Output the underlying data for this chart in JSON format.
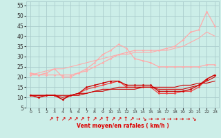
{
  "x": [
    0,
    1,
    2,
    3,
    4,
    5,
    6,
    7,
    8,
    9,
    10,
    11,
    12,
    13,
    14,
    15,
    16,
    17,
    18,
    19,
    20,
    21,
    22,
    23
  ],
  "background_color": "#cceee8",
  "grid_color": "#aacccc",
  "xlabel": "Vent moyen/en rafales ( km/h )",
  "xlabel_color": "#dd0000",
  "ylim": [
    5,
    57
  ],
  "yticks": [
    5,
    10,
    15,
    20,
    25,
    30,
    35,
    40,
    45,
    50,
    55
  ],
  "series": [
    {
      "color": "#ffaaaa",
      "linewidth": 0.8,
      "marker": null,
      "data": [
        21,
        22,
        23,
        24,
        24,
        25,
        26,
        27,
        28,
        29,
        30,
        31,
        31,
        32,
        32,
        32,
        33,
        33,
        34,
        35,
        37,
        39,
        42,
        40
      ]
    },
    {
      "color": "#ffaaaa",
      "linewidth": 0.9,
      "marker": "D",
      "markersize": 1.5,
      "data": [
        22,
        21,
        22,
        24,
        20,
        20,
        22,
        24,
        27,
        31,
        33,
        36,
        34,
        29,
        28,
        27,
        25,
        25,
        25,
        25,
        25,
        25,
        26,
        26
      ]
    },
    {
      "color": "#ffaaaa",
      "linewidth": 0.9,
      "marker": "D",
      "markersize": 1.5,
      "data": [
        21,
        21,
        21,
        21,
        21,
        21,
        22,
        23,
        25,
        27,
        29,
        31,
        32,
        33,
        33,
        33,
        33,
        34,
        35,
        38,
        42,
        43,
        52,
        45
      ]
    },
    {
      "color": "#ee4444",
      "linewidth": 0.9,
      "marker": "D",
      "markersize": 1.5,
      "data": [
        11,
        10,
        11,
        11,
        9,
        11,
        12,
        14,
        15,
        16,
        17,
        18,
        15,
        15,
        15,
        15,
        12,
        12,
        12,
        13,
        13,
        15,
        19,
        21
      ]
    },
    {
      "color": "#cc0000",
      "linewidth": 0.9,
      "marker": "D",
      "markersize": 1.5,
      "data": [
        11,
        10,
        11,
        11,
        9,
        11,
        12,
        15,
        16,
        17,
        18,
        18,
        16,
        16,
        16,
        16,
        13,
        13,
        13,
        13,
        14,
        16,
        19,
        21
      ]
    },
    {
      "color": "#cc0000",
      "linewidth": 0.8,
      "marker": null,
      "data": [
        11,
        11,
        11,
        11,
        11,
        11,
        12,
        12,
        13,
        13,
        14,
        14,
        14,
        14,
        15,
        15,
        15,
        15,
        15,
        16,
        16,
        17,
        17,
        18
      ]
    },
    {
      "color": "#cc0000",
      "linewidth": 0.8,
      "marker": null,
      "data": [
        11,
        11,
        11,
        11,
        10,
        11,
        11,
        12,
        13,
        14,
        14,
        15,
        15,
        15,
        15,
        15,
        14,
        14,
        14,
        14,
        15,
        16,
        18,
        20
      ]
    }
  ],
  "arrows": [
    "↗",
    "↑",
    "↗",
    "↗",
    "↗",
    "↗",
    "↑",
    "↗",
    "↗",
    "↑",
    "↗",
    "↗",
    "↑",
    "↗",
    "→",
    "↘",
    "→",
    "→",
    "→",
    "→",
    "→",
    "→",
    "→",
    "↘"
  ]
}
